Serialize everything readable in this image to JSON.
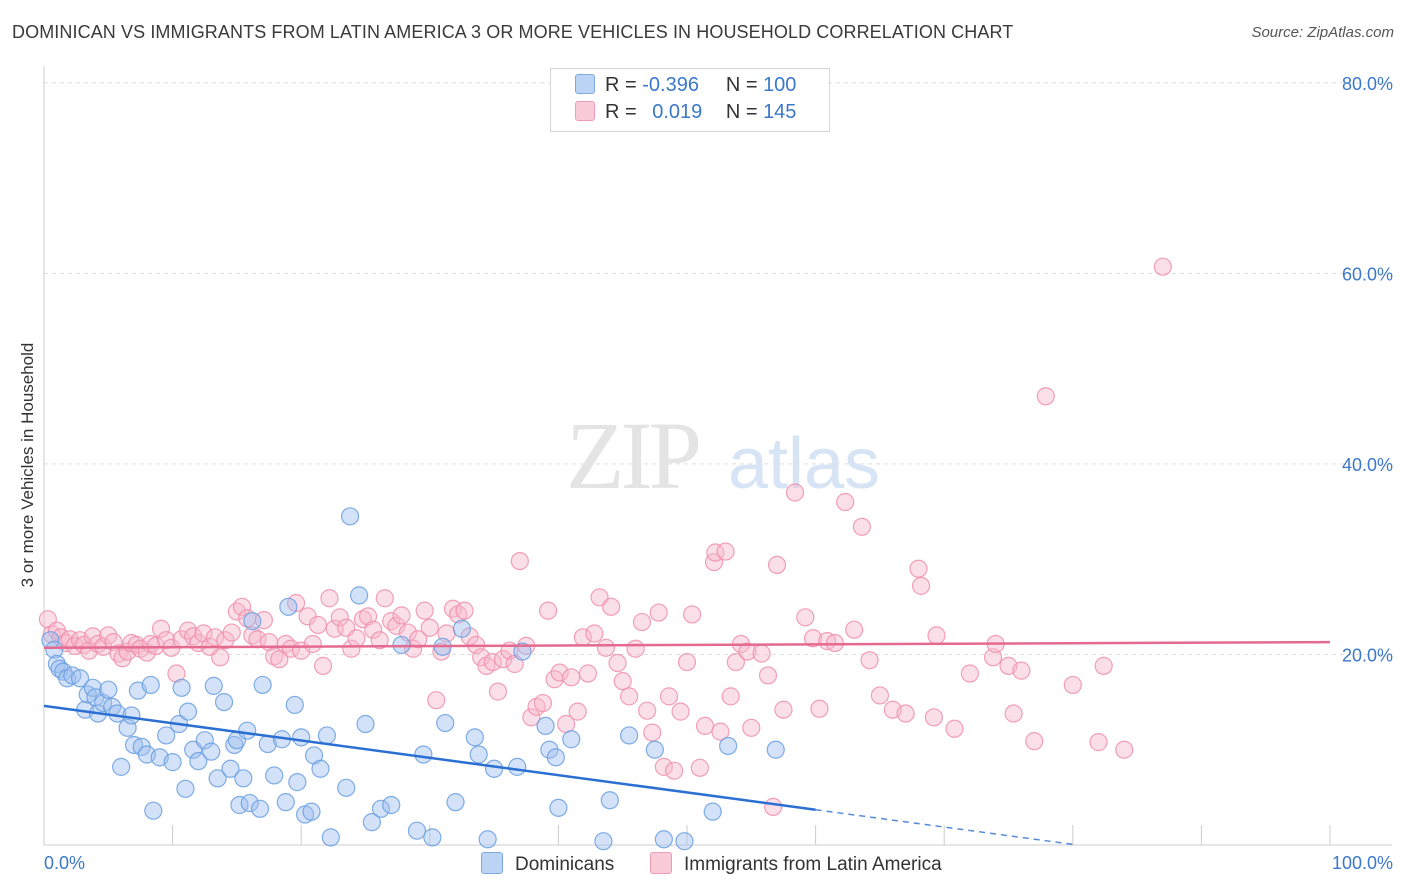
{
  "title": "DOMINICAN VS IMMIGRANTS FROM LATIN AMERICA 3 OR MORE VEHICLES IN HOUSEHOLD CORRELATION CHART",
  "source": "Source: ZipAtlas.com",
  "watermark": {
    "zip": "ZIP",
    "atlas": "atlas"
  },
  "legend": {
    "rows": [
      {
        "r_label": "R =",
        "r_value": "-0.396",
        "n_label": "N =",
        "n_value": "100"
      },
      {
        "r_label": "R =",
        "r_value": "0.019",
        "n_label": "N =",
        "n_value": "145"
      }
    ]
  },
  "bottom_legend": {
    "series1": "Dominicans",
    "series2": "Immigrants from Latin America"
  },
  "chart_data": {
    "type": "scatter",
    "title": "DOMINICAN VS IMMIGRANTS FROM LATIN AMERICA 3 OR MORE VEHICLES IN HOUSEHOLD CORRELATION CHART",
    "xlabel": "",
    "ylabel": "3 or more Vehicles in Household",
    "xlim": [
      0,
      100
    ],
    "ylim": [
      0,
      80
    ],
    "x_tick_labels": [
      "0.0%",
      "100.0%"
    ],
    "y_tick_labels": [
      "20.0%",
      "40.0%",
      "60.0%",
      "80.0%"
    ],
    "y_ticks": [
      20,
      40,
      60,
      80
    ],
    "grid": "horizontal dashed",
    "legend_position": "top-center",
    "colors": {
      "dominicans": "#9dbff0",
      "dominicans_edge": "#6a9fe0",
      "dominicans_line": "#2a6fd1",
      "latin": "#f6b8cb",
      "latin_edge": "#ee8fab",
      "latin_line": "#e46a90",
      "axis_text": "#3b78c9",
      "grid": "#dddddd"
    },
    "series": [
      {
        "name": "Dominicans",
        "regression": {
          "x0": 0,
          "y0": 14.6,
          "x1": 60,
          "y1": 3.7,
          "dashed_to": [
            100,
            -3.6
          ]
        },
        "points": [
          [
            0.5,
            21.5
          ],
          [
            0.8,
            20.5
          ],
          [
            1,
            19
          ],
          [
            1.2,
            18.5
          ],
          [
            1.5,
            18.2
          ],
          [
            1.8,
            17.5
          ],
          [
            2.2,
            17.8
          ],
          [
            2.8,
            17.5
          ],
          [
            3.2,
            14.2
          ],
          [
            3.4,
            15.8
          ],
          [
            3.8,
            16.5
          ],
          [
            4,
            15.5
          ],
          [
            4.2,
            13.8
          ],
          [
            4.6,
            14.9
          ],
          [
            5,
            16.3
          ],
          [
            5.3,
            14.5
          ],
          [
            5.7,
            13.8
          ],
          [
            6,
            8.2
          ],
          [
            6.5,
            12.3
          ],
          [
            6.8,
            13.6
          ],
          [
            7,
            10.5
          ],
          [
            7.3,
            16.2
          ],
          [
            7.6,
            10.3
          ],
          [
            8,
            9.5
          ],
          [
            8.3,
            16.8
          ],
          [
            8.5,
            3.6
          ],
          [
            9,
            9.2
          ],
          [
            9.5,
            11.5
          ],
          [
            10,
            8.7
          ],
          [
            10.5,
            12.7
          ],
          [
            10.7,
            16.5
          ],
          [
            11,
            5.9
          ],
          [
            11.2,
            14
          ],
          [
            11.6,
            10
          ],
          [
            12,
            8.8
          ],
          [
            12.5,
            11
          ],
          [
            13,
            9.8
          ],
          [
            13.2,
            16.7
          ],
          [
            13.5,
            7
          ],
          [
            14,
            15
          ],
          [
            14.5,
            8
          ],
          [
            14.8,
            10.5
          ],
          [
            15,
            11
          ],
          [
            15.2,
            4.2
          ],
          [
            15.5,
            7
          ],
          [
            15.8,
            12
          ],
          [
            16,
            4.4
          ],
          [
            16.2,
            23.5
          ],
          [
            16.8,
            3.8
          ],
          [
            17,
            16.8
          ],
          [
            17.4,
            10.6
          ],
          [
            17.9,
            7.3
          ],
          [
            18.5,
            11.1
          ],
          [
            18.8,
            4.5
          ],
          [
            19,
            25
          ],
          [
            19.5,
            14.7
          ],
          [
            19.7,
            6.6
          ],
          [
            20,
            11.3
          ],
          [
            20.3,
            3.2
          ],
          [
            20.8,
            3.5
          ],
          [
            21,
            9.4
          ],
          [
            21.5,
            8
          ],
          [
            22,
            11.5
          ],
          [
            22.3,
            0.8
          ],
          [
            23.5,
            6
          ],
          [
            23.8,
            34.5
          ],
          [
            24.5,
            26.2
          ],
          [
            25,
            12.7
          ],
          [
            25.5,
            2.4
          ],
          [
            26.2,
            3.8
          ],
          [
            27,
            4.2
          ],
          [
            27.8,
            21
          ],
          [
            29,
            1.5
          ],
          [
            29.5,
            9.5
          ],
          [
            30.2,
            0.8
          ],
          [
            31,
            20.8
          ],
          [
            31.2,
            12.8
          ],
          [
            32,
            4.5
          ],
          [
            32.5,
            22.7
          ],
          [
            33.5,
            11.3
          ],
          [
            33.8,
            9.5
          ],
          [
            34.5,
            0.6
          ],
          [
            35,
            8
          ],
          [
            36.8,
            8.2
          ],
          [
            37.2,
            20.3
          ],
          [
            39,
            12.5
          ],
          [
            39.3,
            10
          ],
          [
            39.8,
            9.2
          ],
          [
            40,
            3.9
          ],
          [
            41,
            11.1
          ],
          [
            43.5,
            0.4
          ],
          [
            44,
            4.7
          ],
          [
            45.5,
            11.5
          ],
          [
            47.5,
            10
          ],
          [
            48.2,
            0.6
          ],
          [
            49.8,
            0.4
          ],
          [
            52,
            3.5
          ],
          [
            53.2,
            10.4
          ],
          [
            56.9,
            10
          ]
        ]
      },
      {
        "name": "Immigrants from Latin America",
        "regression": {
          "x0": 0,
          "y0": 20.7,
          "x1": 100,
          "y1": 21.3
        },
        "points": [
          [
            0.3,
            23.7
          ],
          [
            0.6,
            22.1
          ],
          [
            1,
            22.5
          ],
          [
            1.3,
            21.8
          ],
          [
            1.7,
            21.2
          ],
          [
            2,
            21.6
          ],
          [
            2.4,
            20.9
          ],
          [
            2.8,
            21.5
          ],
          [
            3.1,
            21
          ],
          [
            3.5,
            20.4
          ],
          [
            3.8,
            21.9
          ],
          [
            4.2,
            21.1
          ],
          [
            4.6,
            20.8
          ],
          [
            5,
            22
          ],
          [
            5.4,
            21.3
          ],
          [
            5.8,
            20.1
          ],
          [
            6.1,
            19.6
          ],
          [
            6.5,
            20.3
          ],
          [
            6.8,
            21.2
          ],
          [
            7.2,
            21
          ],
          [
            7.5,
            20.6
          ],
          [
            8,
            20.2
          ],
          [
            8.3,
            21.1
          ],
          [
            8.7,
            20.9
          ],
          [
            9.1,
            22.7
          ],
          [
            9.5,
            21.5
          ],
          [
            9.9,
            20.7
          ],
          [
            10.3,
            18
          ],
          [
            10.7,
            21.6
          ],
          [
            11.2,
            22.5
          ],
          [
            11.6,
            21.9
          ],
          [
            12,
            21.2
          ],
          [
            12.4,
            22.2
          ],
          [
            12.9,
            20.8
          ],
          [
            13.3,
            21.8
          ],
          [
            13.7,
            19.7
          ],
          [
            14.1,
            21.5
          ],
          [
            14.6,
            22.3
          ],
          [
            15,
            24.5
          ],
          [
            15.4,
            25
          ],
          [
            15.8,
            23.8
          ],
          [
            16.2,
            22
          ],
          [
            16.6,
            21.6
          ],
          [
            17.1,
            23.6
          ],
          [
            17.5,
            21.3
          ],
          [
            17.9,
            19.8
          ],
          [
            18.3,
            19.5
          ],
          [
            18.8,
            21.1
          ],
          [
            19.2,
            20.6
          ],
          [
            19.6,
            25.4
          ],
          [
            20,
            20.4
          ],
          [
            20.5,
            24
          ],
          [
            20.9,
            21.1
          ],
          [
            21.3,
            23.1
          ],
          [
            21.7,
            18.8
          ],
          [
            22.2,
            25.9
          ],
          [
            22.6,
            22.7
          ],
          [
            23,
            23.9
          ],
          [
            23.5,
            22.8
          ],
          [
            23.9,
            20.6
          ],
          [
            24.3,
            21.7
          ],
          [
            24.8,
            23.7
          ],
          [
            25.2,
            24
          ],
          [
            25.6,
            22.6
          ],
          [
            26.1,
            21.5
          ],
          [
            26.5,
            25.9
          ],
          [
            27,
            23.5
          ],
          [
            27.4,
            23
          ],
          [
            27.8,
            24.1
          ],
          [
            28.3,
            22.3
          ],
          [
            28.7,
            20.6
          ],
          [
            29.1,
            21.6
          ],
          [
            29.6,
            24.6
          ],
          [
            30,
            22.8
          ],
          [
            30.5,
            15.2
          ],
          [
            30.9,
            20.3
          ],
          [
            31.3,
            22.2
          ],
          [
            31.8,
            24.8
          ],
          [
            32.2,
            24.2
          ],
          [
            32.7,
            24.6
          ],
          [
            33.1,
            21.9
          ],
          [
            33.6,
            21
          ],
          [
            34,
            19.7
          ],
          [
            34.4,
            18.8
          ],
          [
            34.9,
            19.2
          ],
          [
            35.3,
            16.1
          ],
          [
            35.7,
            19.5
          ],
          [
            36.2,
            20.4
          ],
          [
            36.6,
            19
          ],
          [
            37,
            29.8
          ],
          [
            37.5,
            20.9
          ],
          [
            37.9,
            13.4
          ],
          [
            38.3,
            14.5
          ],
          [
            38.8,
            14.9
          ],
          [
            39.2,
            24.6
          ],
          [
            39.7,
            17.4
          ],
          [
            40.1,
            18.1
          ],
          [
            40.6,
            12.7
          ],
          [
            41,
            17.6
          ],
          [
            41.5,
            14
          ],
          [
            41.9,
            21.8
          ],
          [
            42.3,
            18
          ],
          [
            42.8,
            22.2
          ],
          [
            43.2,
            26
          ],
          [
            43.7,
            20.7
          ],
          [
            44.1,
            25
          ],
          [
            44.6,
            19.1
          ],
          [
            45,
            17.2
          ],
          [
            45.5,
            15.6
          ],
          [
            46,
            20.6
          ],
          [
            46.5,
            23.4
          ],
          [
            46.9,
            14.1
          ],
          [
            47.3,
            11.8
          ],
          [
            47.8,
            24.4
          ],
          [
            48.2,
            8.2
          ],
          [
            48.6,
            15.6
          ],
          [
            49,
            7.8
          ],
          [
            49.5,
            14
          ],
          [
            50,
            19.2
          ],
          [
            50.4,
            24.2
          ],
          [
            51,
            8.1
          ],
          [
            51.4,
            12.5
          ],
          [
            52.1,
            29.7
          ],
          [
            52.2,
            30.7
          ],
          [
            52.6,
            11.9
          ],
          [
            53,
            30.8
          ],
          [
            53.4,
            15.6
          ],
          [
            53.8,
            19.2
          ],
          [
            54.2,
            21.1
          ],
          [
            54.7,
            20.3
          ],
          [
            55,
            12.3
          ],
          [
            55.8,
            20.1
          ],
          [
            56.3,
            17.8
          ],
          [
            56.7,
            4
          ],
          [
            57,
            29.4
          ],
          [
            57.5,
            14.2
          ],
          [
            58.4,
            37
          ],
          [
            59.2,
            23.9
          ],
          [
            59.8,
            21.7
          ],
          [
            60.3,
            14.3
          ],
          [
            60.9,
            21.4
          ],
          [
            61.5,
            21.2
          ],
          [
            62.3,
            36
          ],
          [
            63,
            22.6
          ],
          [
            63.6,
            33.4
          ],
          [
            64.2,
            19.4
          ],
          [
            65,
            15.7
          ],
          [
            66,
            14.2
          ],
          [
            67,
            13.8
          ],
          [
            68,
            29
          ],
          [
            68.2,
            27.2
          ],
          [
            69.2,
            13.4
          ],
          [
            69.4,
            22
          ],
          [
            70.8,
            12.2
          ],
          [
            72,
            18
          ],
          [
            73.8,
            19.7
          ],
          [
            74,
            21.1
          ],
          [
            75,
            18.8
          ],
          [
            75.4,
            13.8
          ],
          [
            76,
            18.3
          ],
          [
            77,
            10.9
          ],
          [
            87,
            60.7
          ],
          [
            77.9,
            47.1
          ],
          [
            80,
            16.8
          ],
          [
            82,
            10.8
          ],
          [
            82.4,
            18.8
          ],
          [
            84,
            10
          ]
        ]
      }
    ]
  }
}
